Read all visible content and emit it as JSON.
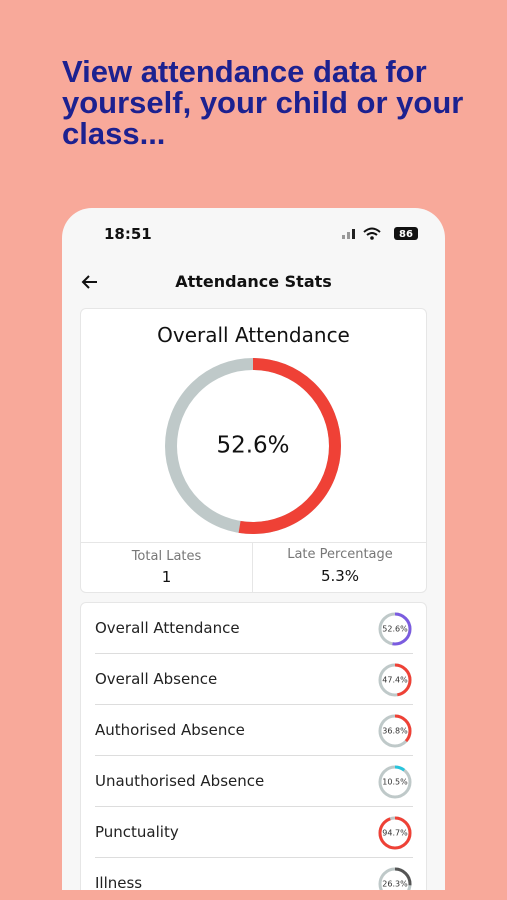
{
  "headline": "View attendance data for yourself, your child or your class...",
  "status_bar": {
    "time": "18:51",
    "battery": "86"
  },
  "screen": {
    "title": "Attendance Stats",
    "overall": {
      "title": "Overall Attendance",
      "value": 52.6,
      "value_label": "52.6%",
      "color": "#ef4136",
      "track_color": "#bfc9c9"
    },
    "total_lates": {
      "label": "Total Lates",
      "value": "1"
    },
    "late_percentage": {
      "label": "Late Percentage",
      "value": "5.3%"
    },
    "rows": [
      {
        "label": "Overall Attendance",
        "value": 52.6,
        "value_label": "52.6%",
        "color": "#7b5ce0"
      },
      {
        "label": "Overall Absence",
        "value": 47.4,
        "value_label": "47.4%",
        "color": "#ef4136"
      },
      {
        "label": "Authorised Absence",
        "value": 36.8,
        "value_label": "36.8%",
        "color": "#ef4136"
      },
      {
        "label": "Unauthorised Absence",
        "value": 10.5,
        "value_label": "10.5%",
        "color": "#29c4dc"
      },
      {
        "label": "Punctuality",
        "value": 94.7,
        "value_label": "94.7%",
        "color": "#ef4136"
      },
      {
        "label": "Illness",
        "value": 26.3,
        "value_label": "26.3%",
        "color": "#555555"
      }
    ]
  }
}
